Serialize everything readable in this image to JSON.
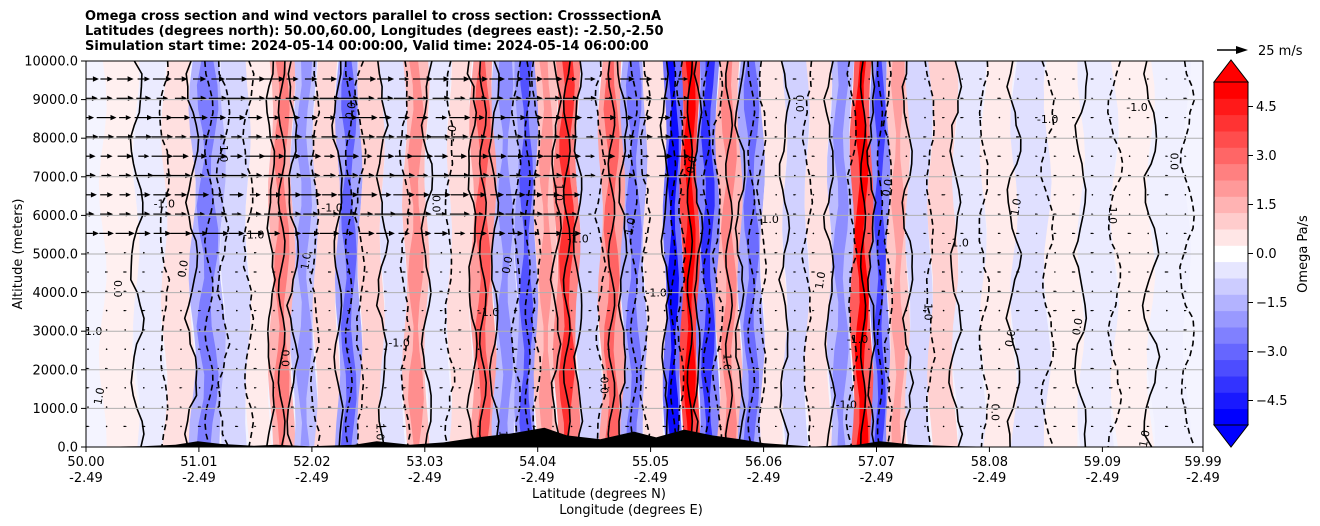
{
  "chart_data": {
    "type": "heatmap",
    "title_lines": [
      "Omega cross section and wind vectors parallel to cross section: CrosssectionA",
      "Latitudes (degrees north): 50.00,60.00, Longitudes (degrees east): -2.50,-2.50",
      "Simulation start time: 2024-05-14 00:00:00, Valid time: 2024-05-14 06:00:00"
    ],
    "ylabel": "Altitude (meters)",
    "xlabel_lat": "Latitude (degrees N)",
    "xlabel_lon": "Longitude (degrees E)",
    "ylim": [
      0,
      10000
    ],
    "yticks": [
      "0.0",
      "1000.0",
      "2000.0",
      "3000.0",
      "4000.0",
      "5000.0",
      "6000.0",
      "7000.0",
      "8000.0",
      "9000.0",
      "10000.0"
    ],
    "xlim": [
      50.0,
      59.99
    ],
    "xticks": [
      {
        "lat": "50.00",
        "lon": "-2.49"
      },
      {
        "lat": "51.01",
        "lon": "-2.49"
      },
      {
        "lat": "52.02",
        "lon": "-2.49"
      },
      {
        "lat": "53.03",
        "lon": "-2.49"
      },
      {
        "lat": "54.04",
        "lon": "-2.49"
      },
      {
        "lat": "55.05",
        "lon": "-2.49"
      },
      {
        "lat": "56.06",
        "lon": "-2.49"
      },
      {
        "lat": "57.07",
        "lon": "-2.49"
      },
      {
        "lat": "58.08",
        "lon": "-2.49"
      },
      {
        "lat": "59.09",
        "lon": "-2.49"
      },
      {
        "lat": "59.99",
        "lon": "-2.49"
      }
    ],
    "grid": "horizontal",
    "colorbar": {
      "label": "Omega Pa/s",
      "range": [
        -5.25,
        5.25
      ],
      "ticks": [
        "4.5",
        "3.0",
        "1.5",
        "0.0",
        "−1.5",
        "−3.0",
        "−4.5"
      ],
      "colors": [
        "#0000ff",
        "#ff0000"
      ],
      "extend": "both"
    },
    "quiver_key": {
      "label": "25 m/s",
      "speed": 25
    },
    "contour_levels": [
      "-1.0",
      "0.0",
      "1.0"
    ],
    "vertical_bands": [
      {
        "lat": 50.3,
        "omega": 0.3
      },
      {
        "lat": 50.6,
        "omega": -0.4
      },
      {
        "lat": 50.8,
        "omega": 0.6
      },
      {
        "lat": 51.1,
        "omega": -1.5
      },
      {
        "lat": 51.35,
        "omega": -0.8
      },
      {
        "lat": 51.55,
        "omega": 0.4
      },
      {
        "lat": 51.75,
        "omega": 1.5
      },
      {
        "lat": 51.95,
        "omega": -1.2
      },
      {
        "lat": 52.15,
        "omega": 0.8
      },
      {
        "lat": 52.35,
        "omega": -1.8
      },
      {
        "lat": 52.55,
        "omega": 0.9
      },
      {
        "lat": 52.75,
        "omega": -0.6
      },
      {
        "lat": 52.95,
        "omega": 1.3
      },
      {
        "lat": 53.15,
        "omega": -0.5
      },
      {
        "lat": 53.35,
        "omega": 0.7
      },
      {
        "lat": 53.55,
        "omega": 1.9
      },
      {
        "lat": 53.75,
        "omega": -1.3
      },
      {
        "lat": 53.95,
        "omega": -2.0
      },
      {
        "lat": 54.1,
        "omega": 1.2
      },
      {
        "lat": 54.3,
        "omega": 2.4
      },
      {
        "lat": 54.5,
        "omega": -0.9
      },
      {
        "lat": 54.7,
        "omega": 1.8
      },
      {
        "lat": 54.9,
        "omega": -1.6
      },
      {
        "lat": 55.1,
        "omega": 0.6
      },
      {
        "lat": 55.25,
        "omega": -2.8
      },
      {
        "lat": 55.4,
        "omega": 3.6
      },
      {
        "lat": 55.55,
        "omega": -2.4
      },
      {
        "lat": 55.75,
        "omega": 1.4
      },
      {
        "lat": 55.95,
        "omega": -1.7
      },
      {
        "lat": 56.15,
        "omega": 0.5
      },
      {
        "lat": 56.35,
        "omega": -0.9
      },
      {
        "lat": 56.55,
        "omega": 0.6
      },
      {
        "lat": 56.75,
        "omega": -1.3
      },
      {
        "lat": 56.95,
        "omega": 3.2
      },
      {
        "lat": 57.1,
        "omega": -2.2
      },
      {
        "lat": 57.25,
        "omega": 1.1
      },
      {
        "lat": 57.45,
        "omega": -0.8
      },
      {
        "lat": 57.65,
        "omega": 0.9
      },
      {
        "lat": 57.9,
        "omega": -0.5
      },
      {
        "lat": 58.15,
        "omega": 0.4
      },
      {
        "lat": 58.45,
        "omega": -0.6
      },
      {
        "lat": 58.75,
        "omega": 0.3
      },
      {
        "lat": 59.05,
        "omega": -0.4
      },
      {
        "lat": 59.35,
        "omega": 0.3
      },
      {
        "lat": 59.7,
        "omega": -0.3
      }
    ],
    "terrain": [
      {
        "lat": 50.0,
        "alt": 0
      },
      {
        "lat": 50.5,
        "alt": 20
      },
      {
        "lat": 50.8,
        "alt": 60
      },
      {
        "lat": 51.0,
        "alt": 150
      },
      {
        "lat": 51.2,
        "alt": 80
      },
      {
        "lat": 51.5,
        "alt": 30
      },
      {
        "lat": 51.7,
        "alt": 60
      },
      {
        "lat": 52.0,
        "alt": 20
      },
      {
        "lat": 52.4,
        "alt": 60
      },
      {
        "lat": 52.6,
        "alt": 150
      },
      {
        "lat": 52.9,
        "alt": 60
      },
      {
        "lat": 53.2,
        "alt": 120
      },
      {
        "lat": 53.5,
        "alt": 250
      },
      {
        "lat": 53.8,
        "alt": 350
      },
      {
        "lat": 54.1,
        "alt": 500
      },
      {
        "lat": 54.3,
        "alt": 300
      },
      {
        "lat": 54.6,
        "alt": 200
      },
      {
        "lat": 54.9,
        "alt": 400
      },
      {
        "lat": 55.1,
        "alt": 250
      },
      {
        "lat": 55.35,
        "alt": 450
      },
      {
        "lat": 55.6,
        "alt": 300
      },
      {
        "lat": 55.85,
        "alt": 200
      },
      {
        "lat": 56.06,
        "alt": 100
      },
      {
        "lat": 56.5,
        "alt": 10
      },
      {
        "lat": 56.9,
        "alt": 60
      },
      {
        "lat": 57.1,
        "alt": 150
      },
      {
        "lat": 57.4,
        "alt": 60
      },
      {
        "lat": 57.8,
        "alt": 20
      },
      {
        "lat": 58.3,
        "alt": 0
      },
      {
        "lat": 59.99,
        "alt": 0
      }
    ]
  }
}
